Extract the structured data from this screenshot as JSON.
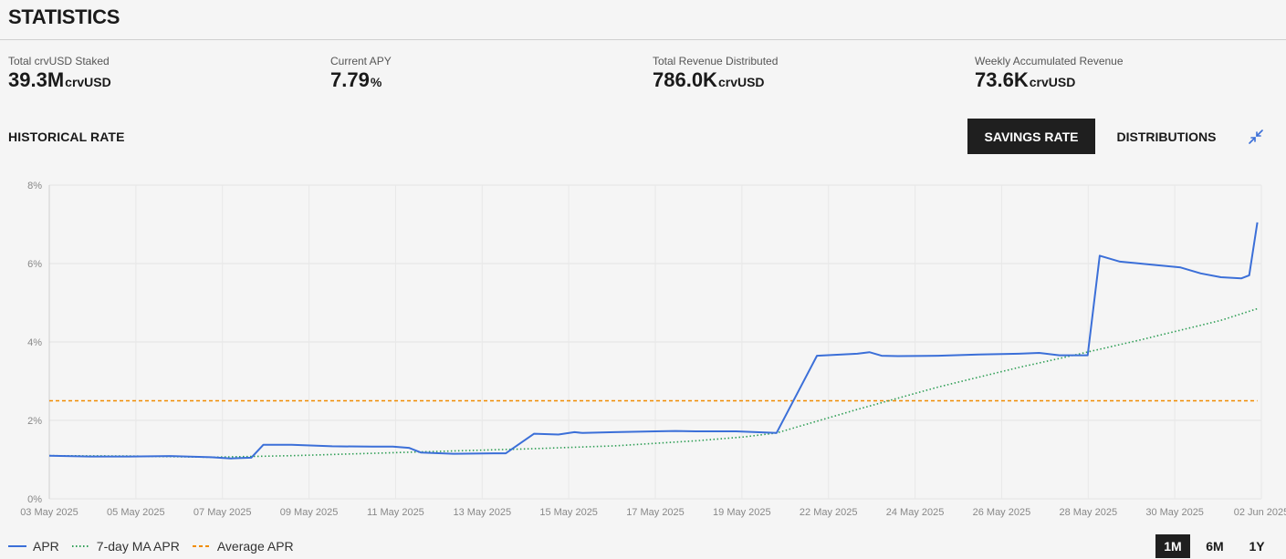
{
  "page": {
    "title": "STATISTICS"
  },
  "stats": [
    {
      "label": "Total crvUSD Staked",
      "value": "39.3M",
      "unit": "crvUSD"
    },
    {
      "label": "Current APY",
      "value": "7.79",
      "unit": "%"
    },
    {
      "label": "Total Revenue Distributed",
      "value": "786.0K",
      "unit": "crvUSD"
    },
    {
      "label": "Weekly Accumulated Revenue",
      "value": "73.6K",
      "unit": "crvUSD"
    }
  ],
  "section_title": "HISTORICAL RATE",
  "tabs": {
    "savings_rate": "SAVINGS RATE",
    "distributions": "DISTRIBUTIONS"
  },
  "icons": {
    "collapse": "collapse-arrows-icon"
  },
  "time_ranges": [
    {
      "label": "1M",
      "active": true
    },
    {
      "label": "6M",
      "active": false
    },
    {
      "label": "1Y",
      "active": false
    }
  ],
  "colors": {
    "apr": "#3b6fd8",
    "ma": "#2e9e55",
    "avg": "#f08c00",
    "dark": "#1f1f1f"
  },
  "chart_data": {
    "type": "line",
    "x_ticks": [
      "03 May 2025",
      "05 May 2025",
      "07 May 2025",
      "09 May 2025",
      "11 May 2025",
      "13 May 2025",
      "15 May 2025",
      "17 May 2025",
      "19 May 2025",
      "22 May 2025",
      "24 May 2025",
      "26 May 2025",
      "28 May 2025",
      "30 May 2025",
      "02 Jun 2025"
    ],
    "y_ticks": [
      "0%",
      "2%",
      "4%",
      "6%",
      "8%"
    ],
    "ylim": [
      0,
      8
    ],
    "xlim": [
      0,
      30
    ],
    "grid": true,
    "legend_placement": "bottom-left",
    "series": [
      {
        "name": "APR",
        "style": "solid",
        "color": "#3b6fd8",
        "x": [
          0,
          1,
          2,
          3,
          4,
          4.5,
          5,
          5.3,
          6,
          7,
          8,
          8.5,
          8.9,
          9.2,
          10,
          11,
          11.3,
          12,
          12.6,
          13,
          13.2,
          14,
          15,
          15.5,
          16,
          17,
          17.5,
          18,
          19,
          20,
          20.3,
          20.6,
          21,
          22,
          23,
          24,
          24.5,
          25,
          25.7,
          26,
          26.5,
          27,
          28,
          28.5,
          29,
          29.5,
          29.7,
          29.9
        ],
        "y": [
          1.1,
          1.08,
          1.08,
          1.09,
          1.06,
          1.03,
          1.05,
          1.38,
          1.38,
          1.34,
          1.33,
          1.33,
          1.3,
          1.18,
          1.15,
          1.16,
          1.16,
          1.66,
          1.64,
          1.7,
          1.68,
          1.7,
          1.72,
          1.73,
          1.72,
          1.72,
          1.7,
          1.68,
          3.65,
          3.7,
          3.74,
          3.65,
          3.64,
          3.65,
          3.68,
          3.7,
          3.72,
          3.66,
          3.66,
          6.2,
          6.05,
          6.0,
          5.9,
          5.75,
          5.65,
          5.62,
          5.7,
          7.05
        ]
      },
      {
        "name": "7-day MA APR",
        "style": "dotted",
        "color": "#2e9e55",
        "x": [
          0,
          2,
          4,
          6,
          8,
          10,
          12,
          14,
          16,
          17.2,
          18,
          20,
          22,
          24,
          25,
          27,
          29,
          29.9
        ],
        "y": [
          1.1,
          1.09,
          1.06,
          1.1,
          1.16,
          1.22,
          1.28,
          1.35,
          1.48,
          1.58,
          1.68,
          2.28,
          2.85,
          3.35,
          3.58,
          4.05,
          4.55,
          4.85
        ]
      },
      {
        "name": "Average APR",
        "style": "dashed",
        "color": "#f08c00",
        "x": [
          0,
          29.9
        ],
        "y": [
          2.5,
          2.5
        ]
      }
    ]
  }
}
